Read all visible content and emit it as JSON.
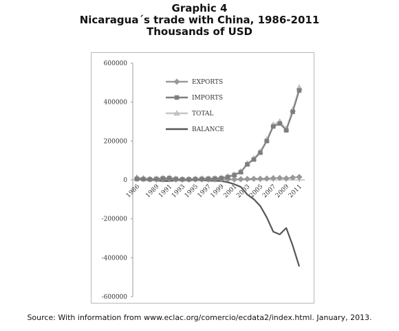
{
  "header": {
    "line1": "Graphic 4",
    "line2": "Nicaragua´s trade with China, 1986-2011",
    "line3": "Thousands of USD"
  },
  "source": "Source: With information from www.eclac.org/comercio/ecdata2/index.html. January, 2013.",
  "colors": {
    "exports": "#9a9a9a",
    "imports": "#7d7d7d",
    "total": "#c6c6c6",
    "balance": "#555555",
    "axis": "#9a9a9a"
  },
  "chart_data": {
    "type": "line",
    "title": "",
    "xlabel": "",
    "ylabel": "",
    "ylim": [
      -600000,
      600000
    ],
    "y_ticks": [
      600000,
      400000,
      200000,
      0,
      -200000,
      -400000,
      -600000
    ],
    "y_tick_labels": [
      "600000",
      "400000",
      "200000",
      "0",
      "-200000",
      "-400000",
      "-600000"
    ],
    "x": [
      1986,
      1987,
      1988,
      1989,
      1990,
      1991,
      1992,
      1993,
      1994,
      1995,
      1996,
      1997,
      1998,
      1999,
      2000,
      2001,
      2002,
      2003,
      2004,
      2005,
      2006,
      2007,
      2008,
      2009,
      2010,
      2011
    ],
    "x_tick_labels": [
      "1986",
      "1989",
      "1991",
      "1993",
      "1995",
      "1997",
      "1999",
      "2001",
      "2003",
      "2005",
      "2007",
      "2009",
      "2011"
    ],
    "x_tick_years": [
      1986,
      1989,
      1991,
      1993,
      1995,
      1997,
      1999,
      2001,
      2003,
      2005,
      2007,
      2009,
      2011
    ],
    "legend_position": "top-center",
    "grid": false,
    "series": [
      {
        "name": "EXPORTS",
        "values": [
          8000,
          5000,
          3000,
          2000,
          2000,
          3000,
          2000,
          2000,
          2000,
          3000,
          3000,
          2000,
          2000,
          3000,
          3000,
          3000,
          4000,
          5000,
          6000,
          6000,
          7000,
          9000,
          10000,
          8000,
          12000,
          15000
        ]
      },
      {
        "name": "IMPORTS",
        "values": [
          5000,
          4000,
          3000,
          5000,
          8000,
          9000,
          5000,
          3000,
          3000,
          4000,
          5000,
          6000,
          7000,
          9000,
          15000,
          25000,
          40000,
          80000,
          105000,
          140000,
          200000,
          275000,
          290000,
          255000,
          350000,
          460000
        ]
      },
      {
        "name": "TOTAL",
        "values": [
          13000,
          9000,
          6000,
          7000,
          10000,
          12000,
          7000,
          5000,
          5000,
          7000,
          8000,
          8000,
          9000,
          12000,
          18000,
          28000,
          44000,
          85000,
          111000,
          146000,
          207000,
          284000,
          300000,
          263000,
          362000,
          475000
        ]
      },
      {
        "name": "BALANCE",
        "values": [
          3000,
          1000,
          0,
          -3000,
          -6000,
          -6000,
          -3000,
          -1000,
          -1000,
          -1000,
          -2000,
          -4000,
          -5000,
          -6000,
          -12000,
          -22000,
          -36000,
          -75000,
          -99000,
          -134000,
          -193000,
          -266000,
          -280000,
          -247000,
          -338000,
          -445000
        ]
      }
    ]
  }
}
